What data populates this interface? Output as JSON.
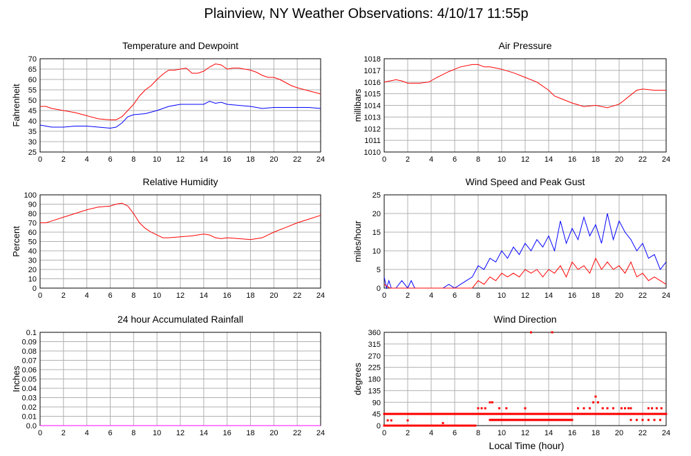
{
  "page": {
    "title": "Plainview, NY Weather Observations: 4/10/17 11:55p",
    "xaxis_label": "Local Time (hour)"
  },
  "colors": {
    "red": "#ff0000",
    "blue": "#0000ff",
    "grid": "#b0b0b0",
    "frame": "#000000"
  },
  "chart_data": [
    {
      "id": "temp",
      "type": "line",
      "title": "Temperature and Dewpoint",
      "xlabel": "",
      "ylabel": "Fahrenheit",
      "xlim": [
        0,
        24
      ],
      "ylim": [
        25,
        70
      ],
      "xticks": [
        0,
        2,
        4,
        6,
        8,
        10,
        12,
        14,
        16,
        18,
        20,
        22,
        24
      ],
      "yticks": [
        25,
        30,
        35,
        40,
        45,
        50,
        55,
        60,
        65,
        70
      ],
      "grid": true,
      "series": [
        {
          "color": "#ff0000",
          "x": [
            0,
            0.5,
            1,
            2,
            3,
            4,
            5,
            6,
            6.5,
            7,
            7.5,
            8,
            8.5,
            9,
            9.5,
            10,
            10.5,
            11,
            11.5,
            12,
            12.5,
            13,
            13.5,
            14,
            14.5,
            15,
            15.5,
            16,
            16.5,
            17,
            17.5,
            18,
            18.5,
            19,
            19.5,
            20,
            20.5,
            21,
            21.5,
            22,
            23,
            24
          ],
          "y": [
            47,
            47,
            46,
            45,
            44,
            42.5,
            41,
            40.5,
            40.5,
            42,
            45,
            48,
            52,
            55,
            57,
            60,
            62.5,
            64.5,
            64.5,
            65,
            65.5,
            63,
            63,
            64,
            66,
            67.5,
            67,
            65,
            65.5,
            65.5,
            65,
            64.5,
            63.5,
            62,
            61,
            61,
            60,
            58.5,
            57,
            56,
            54.5,
            53
          ]
        },
        {
          "color": "#0000ff",
          "x": [
            0,
            0.5,
            1,
            2,
            3,
            4,
            5,
            6,
            6.5,
            7,
            7.5,
            8,
            9,
            10,
            11,
            12,
            13,
            14,
            14.5,
            15,
            15.5,
            16,
            17,
            18,
            19,
            20,
            21,
            22,
            23,
            24
          ],
          "y": [
            38,
            37.5,
            37,
            37,
            37.5,
            37.5,
            37,
            36.5,
            37,
            39,
            42,
            43,
            43.5,
            45,
            47,
            48,
            48,
            48,
            49.5,
            48.5,
            49,
            48,
            47.5,
            47,
            46,
            46.5,
            46.5,
            46.5,
            46.5,
            46
          ]
        }
      ]
    },
    {
      "id": "pressure",
      "type": "line",
      "title": "Air Pressure",
      "xlabel": "",
      "ylabel": "millibars",
      "xlim": [
        0,
        24
      ],
      "ylim": [
        1010,
        1018
      ],
      "xticks": [
        0,
        2,
        4,
        6,
        8,
        10,
        12,
        14,
        16,
        18,
        20,
        22,
        24
      ],
      "yticks": [
        1010,
        1011,
        1012,
        1013,
        1014,
        1015,
        1016,
        1017,
        1018
      ],
      "grid": true,
      "series": [
        {
          "color": "#ff0000",
          "x": [
            0,
            0.5,
            1,
            1.5,
            2,
            3,
            3.8,
            4.5,
            5.5,
            6.5,
            7.5,
            8,
            8.5,
            9,
            10,
            11,
            12,
            13,
            14,
            14.5,
            15,
            16,
            17,
            18,
            19,
            20,
            20.5,
            21,
            21.5,
            22,
            23,
            24
          ],
          "y": [
            1016.0,
            1016.1,
            1016.2,
            1016.1,
            1015.9,
            1015.9,
            1016.0,
            1016.4,
            1016.9,
            1017.3,
            1017.5,
            1017.5,
            1017.3,
            1017.3,
            1017.1,
            1016.8,
            1016.4,
            1016.0,
            1015.3,
            1014.8,
            1014.6,
            1014.2,
            1013.9,
            1014.0,
            1013.8,
            1014.1,
            1014.5,
            1014.9,
            1015.3,
            1015.4,
            1015.3,
            1015.3
          ]
        }
      ]
    },
    {
      "id": "humidity",
      "type": "line",
      "title": "Relative Humidity",
      "xlabel": "",
      "ylabel": "Percent",
      "xlim": [
        0,
        24
      ],
      "ylim": [
        0,
        100
      ],
      "xticks": [
        0,
        2,
        4,
        6,
        8,
        10,
        12,
        14,
        16,
        18,
        20,
        22,
        24
      ],
      "yticks": [
        0,
        10,
        20,
        30,
        40,
        50,
        60,
        70,
        80,
        90,
        100
      ],
      "grid": true,
      "series": [
        {
          "color": "#ff0000",
          "x": [
            0,
            0.5,
            1,
            2,
            3,
            4,
            5,
            6,
            6.5,
            7,
            7.5,
            8,
            8.5,
            9,
            9.5,
            10,
            10.5,
            11,
            12,
            13,
            14,
            14.5,
            15,
            15.5,
            16,
            17,
            18,
            19,
            19.5,
            20,
            21,
            22,
            23,
            24
          ],
          "y": [
            70,
            70,
            72,
            76,
            80,
            84,
            87,
            88,
            90,
            91,
            88,
            80,
            70,
            64,
            60,
            57,
            54,
            54,
            55,
            56,
            58,
            57,
            54,
            53,
            54,
            53,
            52,
            54,
            57,
            60,
            65,
            70,
            74,
            78
          ]
        }
      ]
    },
    {
      "id": "wind",
      "type": "line",
      "title": "Wind Speed and Peak Gust",
      "xlabel": "",
      "ylabel": "miles/hour",
      "xlim": [
        0,
        24
      ],
      "ylim": [
        0,
        25
      ],
      "xticks": [
        0,
        2,
        4,
        6,
        8,
        10,
        12,
        14,
        16,
        18,
        20,
        22,
        24
      ],
      "yticks": [
        0,
        5,
        10,
        15,
        20,
        25
      ],
      "grid": true,
      "series": [
        {
          "color": "#0000ff",
          "x": [
            0,
            0.2,
            0.4,
            0.6,
            1,
            1.5,
            2,
            2.3,
            2.6,
            3,
            4,
            5,
            5.5,
            6,
            6.5,
            7,
            7.5,
            8,
            8.5,
            9,
            9.5,
            10,
            10.5,
            11,
            11.5,
            12,
            12.5,
            13,
            13.5,
            14,
            14.5,
            15,
            15.5,
            16,
            16.5,
            17,
            17.5,
            18,
            18.5,
            19,
            19.5,
            20,
            20.5,
            21,
            21.5,
            22,
            22.5,
            23,
            23.5,
            24
          ],
          "y": [
            3,
            0,
            2,
            0,
            0,
            2,
            0,
            2,
            0,
            0,
            0,
            0,
            1,
            0,
            1,
            2,
            3,
            6,
            5,
            8,
            7,
            10,
            8,
            11,
            9,
            12,
            10,
            13,
            11,
            14,
            10,
            18,
            12,
            16,
            13,
            19,
            14,
            17,
            12,
            20,
            13,
            18,
            15,
            13,
            10,
            12,
            8,
            9,
            5,
            7
          ]
        },
        {
          "color": "#ff0000",
          "x": [
            0,
            0.5,
            1,
            2,
            3,
            4,
            5,
            6,
            7,
            7.5,
            8,
            8.5,
            9,
            9.5,
            10,
            10.5,
            11,
            11.5,
            12,
            12.5,
            13,
            13.5,
            14,
            14.5,
            15,
            15.5,
            16,
            16.5,
            17,
            17.5,
            18,
            18.5,
            19,
            19.5,
            20,
            20.5,
            21,
            21.5,
            22,
            22.5,
            23,
            23.5,
            24
          ],
          "y": [
            1,
            0,
            0,
            0,
            0,
            0,
            0,
            0,
            0,
            0,
            2,
            1,
            3,
            2,
            4,
            3,
            4,
            3,
            5,
            4,
            5,
            3,
            5,
            4,
            6,
            3,
            7,
            5,
            6,
            4,
            8,
            5,
            7,
            5,
            6,
            4,
            7,
            3,
            4,
            2,
            3,
            2,
            1
          ]
        }
      ]
    },
    {
      "id": "rain",
      "type": "line",
      "title": "24 hour Accumulated Rainfall",
      "xlabel": "",
      "ylabel": "Inches",
      "xlim": [
        0,
        24
      ],
      "ylim": [
        0,
        0.1
      ],
      "xticks": [
        0,
        2,
        4,
        6,
        8,
        10,
        12,
        14,
        16,
        18,
        20,
        22,
        24
      ],
      "yticks": [
        0.0,
        0.01,
        0.02,
        0.03,
        0.04,
        0.05,
        0.06,
        0.07,
        0.08,
        0.09,
        0.1
      ],
      "ytick_labels": [
        "0.0",
        "0.01",
        "0.02",
        "0.03",
        "0.04",
        "0.05",
        "0.06",
        "0.07",
        "0.08",
        "0.09",
        "0.1"
      ],
      "grid": true,
      "series": [
        {
          "color": "#ff00ff",
          "x": [
            0,
            24
          ],
          "y": [
            0,
            0
          ]
        }
      ]
    },
    {
      "id": "direction",
      "type": "scatter",
      "title": "Wind Direction",
      "xlabel": "Local Time (hour)",
      "ylabel": "degrees",
      "xlim": [
        0,
        24
      ],
      "ylim": [
        0,
        360
      ],
      "xticks": [
        0,
        2,
        4,
        6,
        8,
        10,
        12,
        14,
        16,
        18,
        20,
        22,
        24
      ],
      "yticks": [
        0,
        45,
        90,
        135,
        180,
        225,
        270,
        315,
        360
      ],
      "grid": true,
      "series": [
        {
          "color": "#ff0000",
          "segments": [
            {
              "x0": 0,
              "x1": 7.8,
              "y": 0,
              "step": 0.08
            },
            {
              "x0": 0,
              "x1": 24,
              "y": 45,
              "step": 0.12
            },
            {
              "x0": 9,
              "x1": 16,
              "y": 22,
              "step": 0.1
            },
            {
              "x0": 21,
              "x1": 23.8,
              "y": 22,
              "step": 0.5
            }
          ],
          "points": [
            [
              0.3,
              20
            ],
            [
              0.6,
              20
            ],
            [
              2.0,
              20
            ],
            [
              5.0,
              10
            ],
            [
              8.0,
              67
            ],
            [
              8.3,
              67
            ],
            [
              8.6,
              67
            ],
            [
              9.0,
              90
            ],
            [
              9.2,
              90
            ],
            [
              9.8,
              67
            ],
            [
              10.4,
              67
            ],
            [
              12.0,
              67
            ],
            [
              12.5,
              360
            ],
            [
              14.3,
              360
            ],
            [
              16.5,
              67
            ],
            [
              17.0,
              67
            ],
            [
              17.5,
              67
            ],
            [
              17.8,
              90
            ],
            [
              18.0,
              112
            ],
            [
              18.2,
              90
            ],
            [
              18.6,
              67
            ],
            [
              19.0,
              67
            ],
            [
              19.5,
              67
            ],
            [
              20.2,
              67
            ],
            [
              20.5,
              67
            ],
            [
              20.8,
              67
            ],
            [
              21.0,
              67
            ],
            [
              22.5,
              67
            ],
            [
              22.8,
              67
            ],
            [
              23.2,
              67
            ],
            [
              23.6,
              67
            ]
          ]
        }
      ]
    }
  ]
}
